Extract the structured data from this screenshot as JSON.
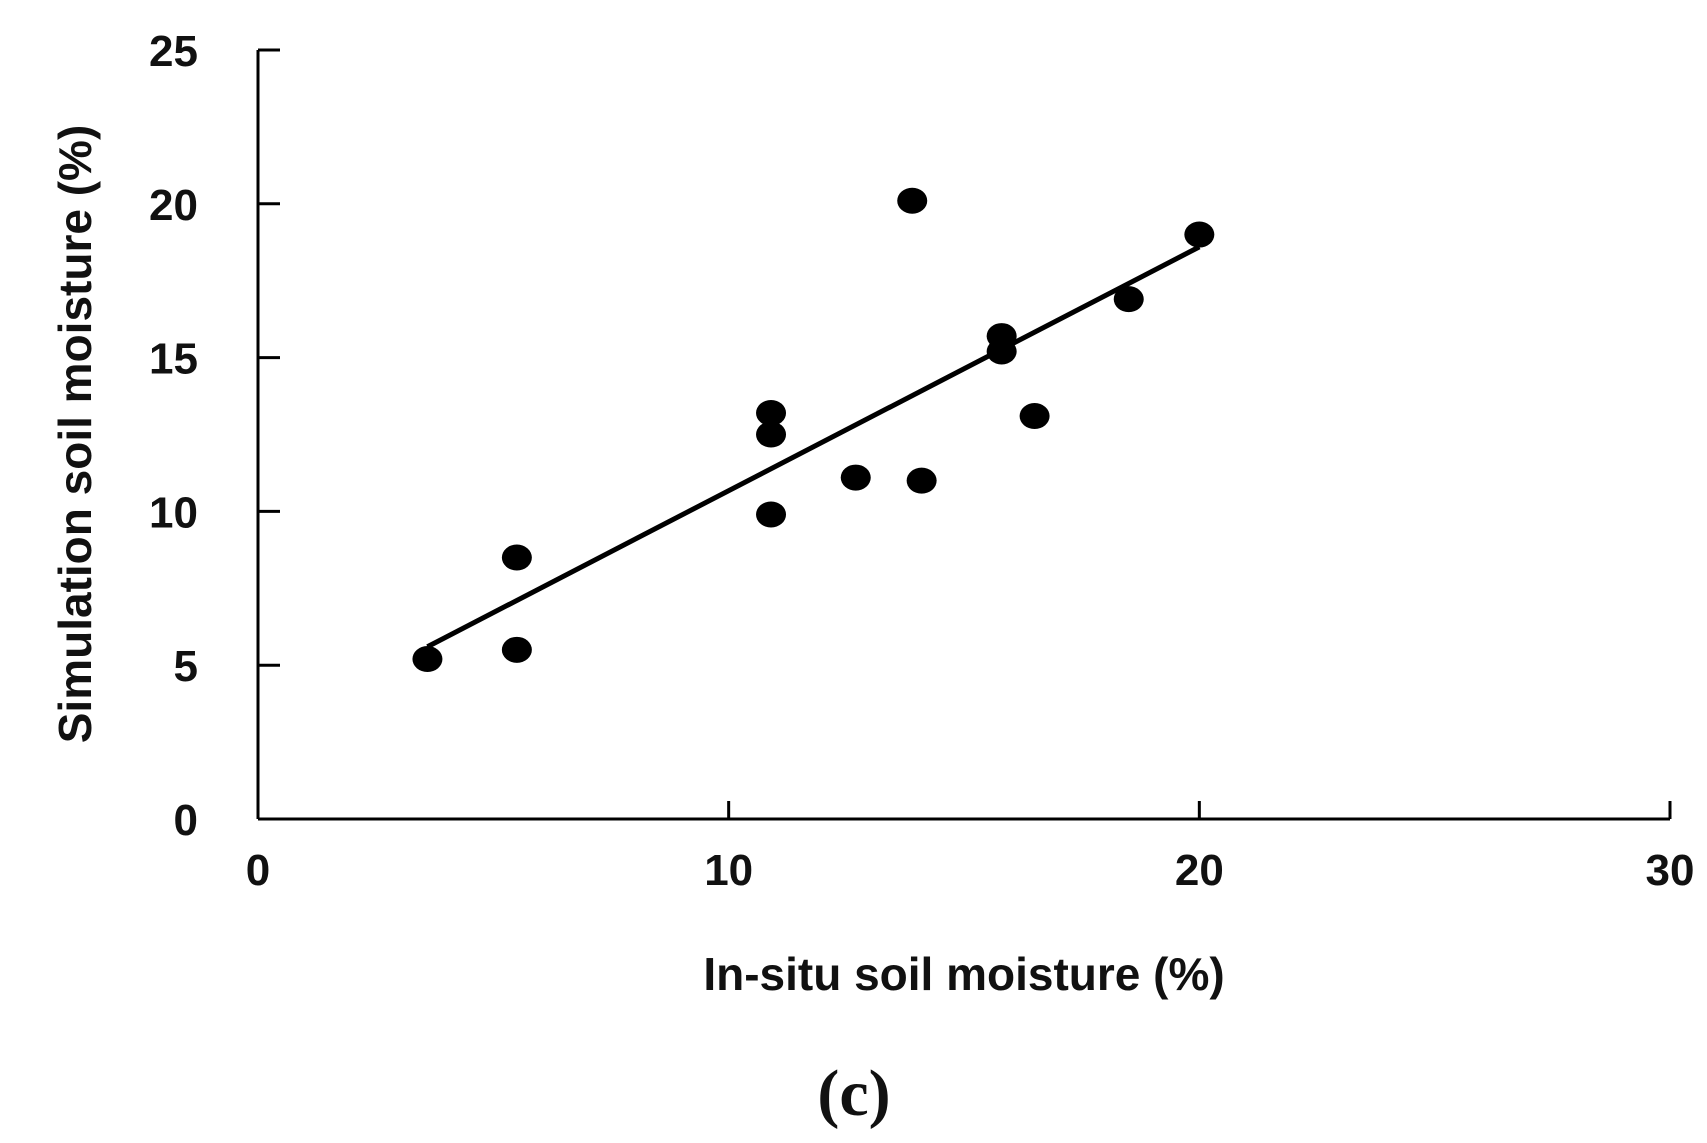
{
  "chart_data": {
    "type": "scatter",
    "title": "",
    "xlabel": "In-situ soil moisture (%)",
    "ylabel": "Simulation soil moisture (%)",
    "panel_label": "(c)",
    "xlim": [
      0,
      30
    ],
    "ylim": [
      0,
      25
    ],
    "xticks": [
      0,
      10,
      20,
      30
    ],
    "yticks": [
      0,
      5,
      10,
      15,
      20,
      25
    ],
    "grid": false,
    "legend": "none",
    "point_color": "#000000",
    "line_color": "#000000",
    "points": [
      {
        "x": 3.6,
        "y": 5.2
      },
      {
        "x": 5.5,
        "y": 5.5
      },
      {
        "x": 5.5,
        "y": 8.5
      },
      {
        "x": 10.9,
        "y": 9.9
      },
      {
        "x": 10.9,
        "y": 12.5
      },
      {
        "x": 10.9,
        "y": 13.2
      },
      {
        "x": 12.7,
        "y": 11.1
      },
      {
        "x": 13.9,
        "y": 20.1
      },
      {
        "x": 14.1,
        "y": 11.0
      },
      {
        "x": 15.8,
        "y": 15.7
      },
      {
        "x": 15.8,
        "y": 15.2
      },
      {
        "x": 16.5,
        "y": 13.1
      },
      {
        "x": 18.5,
        "y": 16.9
      },
      {
        "x": 20.0,
        "y": 19.0
      }
    ],
    "trendline": {
      "x": [
        3.6,
        20.0
      ],
      "y": [
        5.6,
        18.6
      ]
    }
  }
}
